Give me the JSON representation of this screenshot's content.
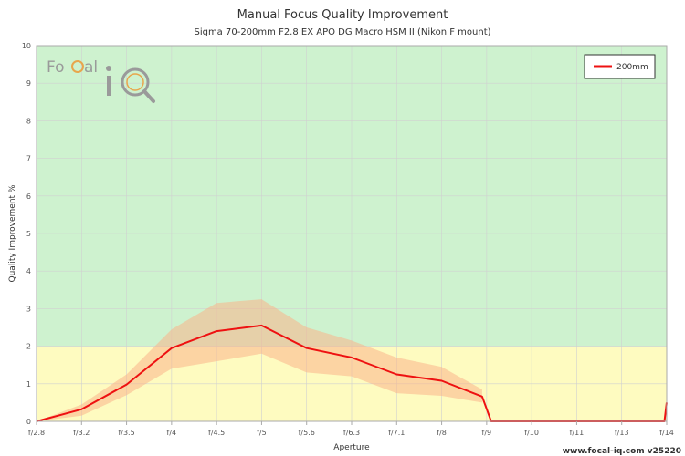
{
  "colors": {
    "zone_good": "#cef2cf",
    "zone_low": "#fefbc0",
    "line": "#ee1111",
    "band": "#f9b48a",
    "logo": "#9a9a9a",
    "logo_accent": "#e8a64c"
  },
  "logo": {
    "text_a": "Fo",
    "text_b": "al",
    "glyph": "iQ",
    "icon": "magnifier-icon"
  },
  "footer": "www.focal-iq.com  v25220",
  "chart_data": {
    "type": "line",
    "title": "Manual Focus Quality Improvement",
    "subtitle": "Sigma 70-200mm F2.8 EX APO DG Macro HSM II (Nikon F mount)",
    "xlabel": "Aperture",
    "ylabel": "Quality Improvement %",
    "categories": [
      "f/2.8",
      "f/3.2",
      "f/3.5",
      "f/4",
      "f/4.5",
      "f/5",
      "f/5.6",
      "f/6.3",
      "f/7.1",
      "f/8",
      "f/9",
      "f/10",
      "f/11",
      "f/13",
      "f/14"
    ],
    "ylim": [
      0,
      10
    ],
    "yticks": [
      0,
      1,
      2,
      3,
      4,
      5,
      6,
      7,
      8,
      9,
      10
    ],
    "grid": true,
    "legend_position": "top-right",
    "zones": [
      {
        "from": 0,
        "to": 2,
        "color": "#fefbc0"
      },
      {
        "from": 2,
        "to": 10,
        "color": "#cef2cf"
      }
    ],
    "series": [
      {
        "name": "200mm",
        "color": "#ee1111",
        "points": [
          [
            0,
            0.0
          ],
          [
            1,
            0.32
          ],
          [
            2,
            0.98
          ],
          [
            3,
            1.95
          ],
          [
            4,
            2.4
          ],
          [
            5,
            2.55
          ],
          [
            6,
            1.95
          ],
          [
            7,
            1.7
          ],
          [
            8,
            1.25
          ],
          [
            9,
            1.08
          ],
          [
            9.9,
            0.66
          ],
          [
            10.1,
            0.0
          ],
          [
            13.95,
            0.0
          ],
          [
            14,
            0.5
          ]
        ],
        "band_upper": [
          [
            0,
            0.0
          ],
          [
            1,
            0.45
          ],
          [
            2,
            1.25
          ],
          [
            3,
            2.45
          ],
          [
            4,
            3.15
          ],
          [
            5,
            3.25
          ],
          [
            6,
            2.5
          ],
          [
            7,
            2.15
          ],
          [
            8,
            1.7
          ],
          [
            9,
            1.45
          ],
          [
            9.9,
            0.85
          ]
        ],
        "band_lower": [
          [
            0,
            0.0
          ],
          [
            1,
            0.15
          ],
          [
            2,
            0.7
          ],
          [
            3,
            1.4
          ],
          [
            4,
            1.6
          ],
          [
            5,
            1.8
          ],
          [
            6,
            1.3
          ],
          [
            7,
            1.2
          ],
          [
            8,
            0.75
          ],
          [
            9,
            0.68
          ],
          [
            9.9,
            0.5
          ]
        ]
      }
    ]
  }
}
